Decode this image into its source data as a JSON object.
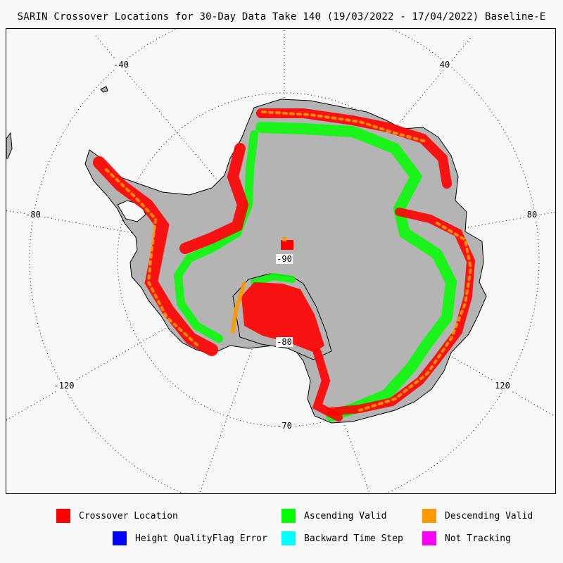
{
  "title": "SARIN Crossover Locations for 30-Day Data Take 140 (19/03/2022 - 17/04/2022) Baseline-E",
  "grid_labels": {
    "lon_m40": "-40",
    "lon_40": "40",
    "lon_m80": "-80",
    "lon_80": "80",
    "lon_m120": "-120",
    "lon_120": "120",
    "lat_m90": "-90",
    "lat_m80": "-80",
    "lat_m70": "-70"
  },
  "legend": [
    {
      "label": "Crossover Location",
      "color": "#ff0000"
    },
    {
      "label": "Ascending Valid",
      "color": "#00ff00"
    },
    {
      "label": "Descending Valid",
      "color": "#ff9900"
    },
    {
      "label": "Height QualityFlag Error",
      "color": "#0000ff"
    },
    {
      "label": "Backward Time Step",
      "color": "#00ffff"
    },
    {
      "label": "Not Tracking",
      "color": "#ff00ff"
    }
  ],
  "colors": {
    "land": "#b4b4b4",
    "background": "#f8f8f8",
    "grid": "#000000"
  }
}
